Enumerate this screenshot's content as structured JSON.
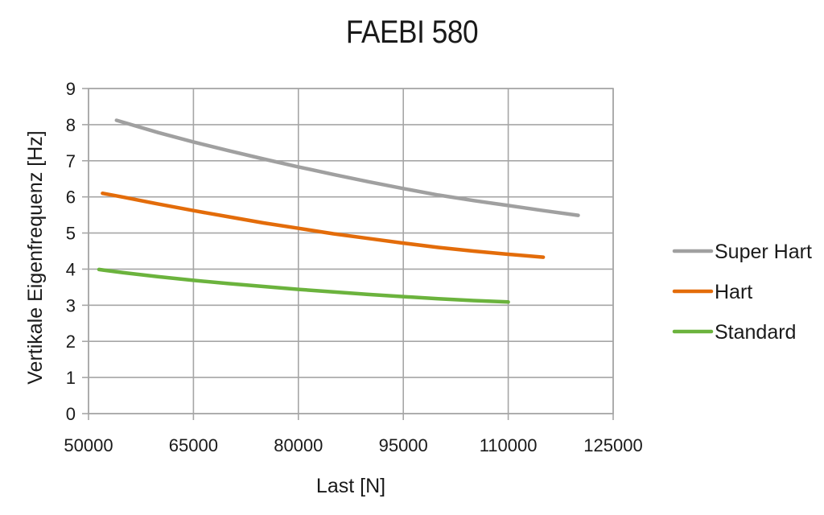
{
  "chart_data": {
    "type": "line",
    "title": "FAEBI 580",
    "xlabel": "Last [N]",
    "ylabel": "Vertikale Eigenfrequenz [Hz]",
    "xlim": [
      50000,
      125000
    ],
    "ylim": [
      0,
      9
    ],
    "xticks": [
      50000,
      65000,
      80000,
      95000,
      110000,
      125000
    ],
    "yticks": [
      0,
      1,
      2,
      3,
      4,
      5,
      6,
      7,
      8,
      9
    ],
    "grid": true,
    "legend_position": "right",
    "series": [
      {
        "name": "Super Hart",
        "color": "#a0a0a0",
        "x": [
          54000,
          60000,
          65000,
          70000,
          75000,
          80000,
          85000,
          90000,
          95000,
          100000,
          105000,
          110000,
          115000,
          120000
        ],
        "y": [
          8.12,
          7.78,
          7.52,
          7.28,
          7.05,
          6.83,
          6.62,
          6.42,
          6.23,
          6.05,
          5.9,
          5.76,
          5.62,
          5.49
        ]
      },
      {
        "name": "Hart",
        "color": "#e36c0a",
        "x": [
          52000,
          55000,
          60000,
          65000,
          70000,
          75000,
          80000,
          85000,
          90000,
          95000,
          100000,
          105000,
          110000,
          115000
        ],
        "y": [
          6.1,
          5.99,
          5.8,
          5.62,
          5.45,
          5.28,
          5.13,
          4.98,
          4.85,
          4.72,
          4.6,
          4.5,
          4.41,
          4.33
        ]
      },
      {
        "name": "Standard",
        "color": "#6bb33d",
        "x": [
          51500,
          55000,
          60000,
          65000,
          70000,
          75000,
          80000,
          85000,
          90000,
          95000,
          100000,
          105000,
          110000
        ],
        "y": [
          3.99,
          3.9,
          3.79,
          3.69,
          3.6,
          3.52,
          3.44,
          3.37,
          3.3,
          3.24,
          3.18,
          3.13,
          3.09
        ]
      }
    ]
  }
}
